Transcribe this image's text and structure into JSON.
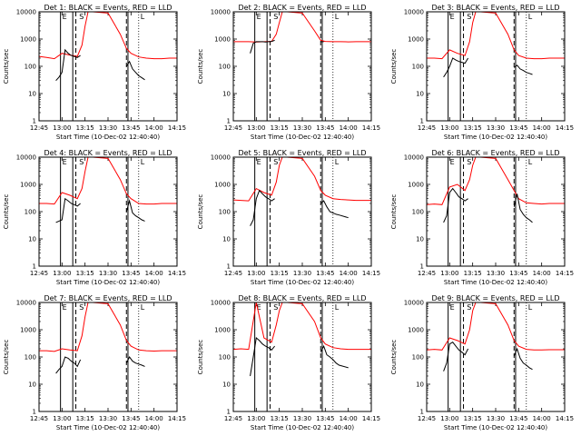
{
  "figure": {
    "x_ticks": [
      "12:45",
      "13:00",
      "13:15",
      "13:30",
      "13:45",
      "14:00",
      "14:15"
    ],
    "y_ticks": [
      "1",
      "10",
      "100",
      "1000",
      "10000"
    ],
    "xlabel": "Start Time (10-Dec-02 12:40:40)",
    "ylabel": "Counts/sec",
    "colors": {
      "events": "#000000",
      "lld": "#ff0000",
      "frame": "#000000"
    }
  },
  "chart_data": [
    {
      "type": "line",
      "title": "Det 1: BLACK = Events, RED = LLD",
      "xlabel": "Start Time (10-Dec-02 12:40:40)",
      "ylabel": "Counts/sec",
      "x_range": [
        "12:45",
        "14:15"
      ],
      "y_scale": "log",
      "ylim": [
        1,
        10000
      ],
      "events_t": [
        "12:56",
        "12:58",
        "13:00",
        "13:02",
        "13:04",
        "13:06",
        "13:08",
        "13:10",
        "13:12",
        "13:42",
        "13:44",
        "13:46",
        "13:48",
        "13:50",
        "13:52",
        "13:54"
      ],
      "events": [
        30,
        40,
        60,
        400,
        300,
        250,
        230,
        210,
        250,
        100,
        150,
        80,
        60,
        45,
        38,
        32
      ],
      "lld_t": [
        "12:45",
        "12:50",
        "12:55",
        "13:00",
        "13:05",
        "13:10",
        "13:13",
        "13:15",
        "13:17",
        "13:20",
        "13:30",
        "13:38",
        "13:42",
        "13:45",
        "13:50",
        "13:55",
        "14:00",
        "14:05",
        "14:10",
        "14:15"
      ],
      "lld": [
        230,
        210,
        190,
        300,
        260,
        230,
        600,
        3000,
        10000,
        10000,
        9000,
        1500,
        450,
        300,
        220,
        200,
        190,
        190,
        200,
        200
      ],
      "vlines_solid": [
        "12:59",
        "13:07",
        "13:43"
      ],
      "vlines_dashed": [
        "13:09",
        "13:42"
      ],
      "vlines_dotted": [
        "13:50"
      ],
      "annotations": [
        {
          "t": "12:59",
          "text": "E"
        },
        {
          "t": "13:10",
          "text": "S"
        },
        {
          "t": "13:50",
          "text": "L"
        }
      ]
    },
    {
      "type": "line",
      "title": "Det 2: BLACK = Events, RED = LLD",
      "xlabel": "Start Time (10-Dec-02 12:40:40)",
      "ylabel": "Counts/sec",
      "x_range": [
        "12:45",
        "14:15"
      ],
      "y_scale": "log",
      "ylim": [
        1,
        10000
      ],
      "events_t": [
        "12:56",
        "12:58",
        "13:00",
        "13:02",
        "13:04",
        "13:06",
        "13:08",
        "13:10",
        "13:12",
        "13:42",
        "13:44"
      ],
      "events": [
        300,
        700,
        800,
        800,
        800,
        780,
        800,
        820,
        900,
        800,
        800
      ],
      "lld_t": [
        "12:45",
        "12:50",
        "12:55",
        "13:00",
        "13:05",
        "13:10",
        "13:13",
        "13:15",
        "13:17",
        "13:20",
        "13:30",
        "13:38",
        "13:42",
        "13:45",
        "13:50",
        "13:55",
        "14:00",
        "14:05",
        "14:10",
        "14:15"
      ],
      "lld": [
        800,
        800,
        800,
        780,
        800,
        820,
        1500,
        4000,
        10000,
        10000,
        9000,
        2000,
        900,
        820,
        800,
        800,
        790,
        800,
        800,
        800
      ],
      "vlines_solid": [
        "12:59",
        "13:07",
        "13:43"
      ],
      "vlines_dashed": [
        "13:09",
        "13:42"
      ],
      "vlines_dotted": [
        "13:50"
      ],
      "annotations": [
        {
          "t": "12:59",
          "text": "E"
        },
        {
          "t": "13:10",
          "text": "S"
        },
        {
          "t": "13:50",
          "text": "L"
        }
      ]
    },
    {
      "type": "line",
      "title": "Det 3: BLACK = Events, RED = LLD",
      "xlabel": "Start Time (10-Dec-02 12:40:40)",
      "ylabel": "Counts/sec",
      "x_range": [
        "12:45",
        "14:15"
      ],
      "y_scale": "log",
      "ylim": [
        1,
        10000
      ],
      "events_t": [
        "12:56",
        "12:58",
        "13:00",
        "13:02",
        "13:04",
        "13:06",
        "13:08",
        "13:10",
        "13:12",
        "13:42",
        "13:44",
        "13:46",
        "13:48",
        "13:50",
        "13:52",
        "13:54"
      ],
      "events": [
        40,
        60,
        100,
        200,
        170,
        150,
        140,
        130,
        200,
        90,
        110,
        80,
        70,
        60,
        55,
        50
      ],
      "lld_t": [
        "12:45",
        "12:50",
        "12:55",
        "13:00",
        "13:05",
        "13:10",
        "13:13",
        "13:15",
        "13:17",
        "13:20",
        "13:30",
        "13:38",
        "13:42",
        "13:45",
        "13:50",
        "13:55",
        "14:00",
        "14:05",
        "14:10",
        "14:15"
      ],
      "lld": [
        200,
        200,
        190,
        400,
        300,
        250,
        800,
        4000,
        10000,
        10000,
        9000,
        1500,
        400,
        250,
        200,
        190,
        190,
        200,
        200,
        200
      ],
      "vlines_solid": [
        "12:59",
        "13:07",
        "13:43"
      ],
      "vlines_dashed": [
        "13:09",
        "13:42"
      ],
      "vlines_dotted": [
        "13:50"
      ],
      "annotations": [
        {
          "t": "12:59",
          "text": "E"
        },
        {
          "t": "13:10",
          "text": "S"
        },
        {
          "t": "13:50",
          "text": "L"
        }
      ]
    },
    {
      "type": "line",
      "title": "Det 4: BLACK = Events, RED = LLD",
      "xlabel": "Start Time (10-Dec-02 12:40:40)",
      "ylabel": "Counts/sec",
      "x_range": [
        "12:45",
        "14:15"
      ],
      "y_scale": "log",
      "ylim": [
        1,
        10000
      ],
      "events_t": [
        "12:56",
        "12:58",
        "13:00",
        "13:02",
        "13:04",
        "13:06",
        "13:08",
        "13:10",
        "13:12",
        "13:42",
        "13:44",
        "13:46",
        "13:48",
        "13:50",
        "13:52",
        "13:54"
      ],
      "events": [
        40,
        45,
        50,
        300,
        250,
        200,
        180,
        160,
        200,
        100,
        250,
        90,
        70,
        60,
        50,
        45
      ],
      "lld_t": [
        "12:45",
        "12:50",
        "12:55",
        "13:00",
        "13:05",
        "13:10",
        "13:13",
        "13:15",
        "13:17",
        "13:20",
        "13:30",
        "13:38",
        "13:42",
        "13:45",
        "13:50",
        "13:55",
        "14:00",
        "14:05",
        "14:10",
        "14:15"
      ],
      "lld": [
        200,
        200,
        190,
        500,
        400,
        300,
        700,
        3000,
        10000,
        10000,
        9000,
        1500,
        450,
        300,
        200,
        190,
        190,
        200,
        200,
        200
      ],
      "vlines_solid": [
        "12:59",
        "13:07",
        "13:43"
      ],
      "vlines_dashed": [
        "13:09",
        "13:42"
      ],
      "vlines_dotted": [
        "13:50"
      ],
      "annotations": [
        {
          "t": "12:59",
          "text": "E"
        },
        {
          "t": "13:10",
          "text": "S"
        },
        {
          "t": "13:50",
          "text": "L"
        }
      ]
    },
    {
      "type": "line",
      "title": "Det 5: BLACK = Events, RED = LLD",
      "xlabel": "Start Time (10-Dec-02 12:40:40)",
      "ylabel": "Counts/sec",
      "x_range": [
        "12:45",
        "14:15"
      ],
      "y_scale": "log",
      "ylim": [
        1,
        10000
      ],
      "events_t": [
        "12:56",
        "12:58",
        "13:00",
        "13:02",
        "13:04",
        "13:06",
        "13:08",
        "13:10",
        "13:12",
        "13:42",
        "13:44",
        "13:46",
        "13:48",
        "13:50",
        "13:52",
        "13:54",
        "14:00"
      ],
      "events": [
        30,
        50,
        300,
        600,
        450,
        350,
        300,
        250,
        300,
        200,
        250,
        150,
        100,
        90,
        80,
        75,
        60
      ],
      "lld_t": [
        "12:45",
        "12:50",
        "12:55",
        "13:00",
        "13:05",
        "13:10",
        "13:13",
        "13:15",
        "13:17",
        "13:20",
        "13:30",
        "13:38",
        "13:42",
        "13:45",
        "13:50",
        "13:55",
        "14:00",
        "14:05",
        "14:10",
        "14:15"
      ],
      "lld": [
        270,
        260,
        250,
        700,
        500,
        400,
        1200,
        5000,
        10000,
        10000,
        9000,
        2000,
        600,
        400,
        300,
        280,
        270,
        260,
        260,
        260
      ],
      "vlines_solid": [
        "12:59",
        "13:07",
        "13:43"
      ],
      "vlines_dashed": [
        "13:09",
        "13:42"
      ],
      "vlines_dotted": [
        "13:50"
      ],
      "annotations": [
        {
          "t": "12:59",
          "text": "E"
        },
        {
          "t": "13:10",
          "text": "S"
        },
        {
          "t": "13:50",
          "text": "L"
        }
      ]
    },
    {
      "type": "line",
      "title": "Det 6: BLACK = Events, RED = LLD",
      "xlabel": "Start Time (10-Dec-02 12:40:40)",
      "ylabel": "Counts/sec",
      "x_range": [
        "12:45",
        "14:15"
      ],
      "y_scale": "log",
      "ylim": [
        1,
        10000
      ],
      "events_t": [
        "12:56",
        "12:58",
        "13:00",
        "13:02",
        "13:04",
        "13:06",
        "13:08",
        "13:10",
        "13:12",
        "13:42",
        "13:44",
        "13:46",
        "13:48",
        "13:50",
        "13:52",
        "13:54"
      ],
      "events": [
        40,
        70,
        500,
        700,
        500,
        350,
        300,
        250,
        300,
        150,
        450,
        120,
        80,
        60,
        50,
        40
      ],
      "lld_t": [
        "12:45",
        "12:50",
        "12:55",
        "13:00",
        "13:05",
        "13:10",
        "13:13",
        "13:15",
        "13:17",
        "13:20",
        "13:30",
        "13:38",
        "13:42",
        "13:45",
        "13:50",
        "13:55",
        "14:00",
        "14:05",
        "14:10",
        "14:15"
      ],
      "lld": [
        180,
        190,
        180,
        800,
        1000,
        600,
        1500,
        5000,
        10000,
        10000,
        9000,
        1500,
        600,
        300,
        210,
        200,
        190,
        200,
        200,
        200
      ],
      "vlines_solid": [
        "12:59",
        "13:07",
        "13:43"
      ],
      "vlines_dashed": [
        "13:09",
        "13:42"
      ],
      "vlines_dotted": [
        "13:50"
      ],
      "annotations": [
        {
          "t": "12:59",
          "text": "E"
        },
        {
          "t": "13:10",
          "text": "S"
        },
        {
          "t": "13:50",
          "text": "L"
        }
      ]
    },
    {
      "type": "line",
      "title": "Det 7: BLACK = Events, RED = LLD",
      "xlabel": "Start Time (10-Dec-02 12:40:40)",
      "ylabel": "Counts/sec",
      "x_range": [
        "12:45",
        "14:15"
      ],
      "y_scale": "log",
      "ylim": [
        1,
        10000
      ],
      "events_t": [
        "12:56",
        "12:58",
        "13:00",
        "13:02",
        "13:04",
        "13:06",
        "13:08",
        "13:10",
        "13:12",
        "13:42",
        "13:44",
        "13:46",
        "13:48",
        "13:50",
        "13:52",
        "13:54"
      ],
      "events": [
        25,
        35,
        45,
        100,
        90,
        70,
        60,
        45,
        80,
        60,
        100,
        70,
        60,
        55,
        50,
        45
      ],
      "lld_t": [
        "12:45",
        "12:50",
        "12:55",
        "13:00",
        "13:05",
        "13:10",
        "13:13",
        "13:15",
        "13:17",
        "13:20",
        "13:30",
        "13:38",
        "13:42",
        "13:45",
        "13:50",
        "13:55",
        "14:00",
        "14:05",
        "14:10",
        "14:15"
      ],
      "lld": [
        170,
        170,
        160,
        200,
        180,
        170,
        600,
        3000,
        10000,
        10000,
        9000,
        1500,
        400,
        250,
        180,
        170,
        165,
        170,
        170,
        170
      ],
      "vlines_solid": [
        "12:59",
        "13:07",
        "13:43"
      ],
      "vlines_dashed": [
        "13:09",
        "13:42"
      ],
      "vlines_dotted": [
        "13:50"
      ],
      "annotations": [
        {
          "t": "12:59",
          "text": "E"
        },
        {
          "t": "13:10",
          "text": "S"
        },
        {
          "t": "13:50",
          "text": "L"
        }
      ]
    },
    {
      "type": "line",
      "title": "Det 8: BLACK = Events, RED = LLD",
      "xlabel": "Start Time (10-Dec-02 12:40:40)",
      "ylabel": "Counts/sec",
      "x_range": [
        "12:45",
        "14:15"
      ],
      "y_scale": "log",
      "ylim": [
        1,
        10000
      ],
      "events_t": [
        "12:56",
        "12:58",
        "13:00",
        "13:02",
        "13:04",
        "13:06",
        "13:08",
        "13:10",
        "13:12",
        "13:42",
        "13:44",
        "13:46",
        "13:48",
        "13:50",
        "13:52",
        "13:54",
        "14:00"
      ],
      "events": [
        20,
        100,
        500,
        400,
        300,
        250,
        220,
        180,
        250,
        150,
        250,
        120,
        100,
        80,
        60,
        50,
        40
      ],
      "lld_t": [
        "12:45",
        "12:50",
        "12:55",
        "13:00",
        "13:05",
        "13:10",
        "13:13",
        "13:15",
        "13:17",
        "13:20",
        "13:30",
        "13:38",
        "13:42",
        "13:45",
        "13:50",
        "13:55",
        "14:00",
        "14:05",
        "14:10",
        "14:15"
      ],
      "lld": [
        190,
        200,
        190,
        10000,
        500,
        350,
        1500,
        5000,
        10000,
        10000,
        9000,
        2000,
        500,
        300,
        220,
        200,
        190,
        190,
        190,
        190
      ],
      "vlines_solid": [
        "12:59",
        "13:07",
        "13:43"
      ],
      "vlines_dashed": [
        "13:09",
        "13:42"
      ],
      "vlines_dotted": [
        "13:50"
      ],
      "annotations": [
        {
          "t": "12:59",
          "text": "E"
        },
        {
          "t": "13:10",
          "text": "S"
        },
        {
          "t": "13:50",
          "text": "L"
        }
      ]
    },
    {
      "type": "line",
      "title": "Det 9: BLACK = Events, RED = LLD",
      "xlabel": "Start Time (10-Dec-02 12:40:40)",
      "ylabel": "Counts/sec",
      "x_range": [
        "12:45",
        "14:15"
      ],
      "y_scale": "log",
      "ylim": [
        1,
        10000
      ],
      "events_t": [
        "12:56",
        "12:58",
        "13:00",
        "13:02",
        "13:04",
        "13:06",
        "13:08",
        "13:10",
        "13:12",
        "13:42",
        "13:44",
        "13:46",
        "13:48",
        "13:50",
        "13:52",
        "13:54"
      ],
      "events": [
        30,
        60,
        300,
        350,
        250,
        180,
        150,
        120,
        200,
        110,
        200,
        90,
        60,
        50,
        40,
        35
      ],
      "lld_t": [
        "12:45",
        "12:50",
        "12:55",
        "13:00",
        "13:05",
        "13:10",
        "13:13",
        "13:15",
        "13:17",
        "13:20",
        "13:30",
        "13:38",
        "13:42",
        "13:45",
        "13:50",
        "13:55",
        "14:00",
        "14:05",
        "14:10",
        "14:15"
      ],
      "lld": [
        180,
        190,
        180,
        500,
        400,
        300,
        1000,
        5000,
        10000,
        10000,
        9000,
        1500,
        400,
        250,
        190,
        180,
        180,
        185,
        185,
        185
      ],
      "vlines_solid": [
        "12:59",
        "13:07",
        "13:43"
      ],
      "vlines_dashed": [
        "13:09",
        "13:42"
      ],
      "vlines_dotted": [
        "13:50"
      ],
      "annotations": [
        {
          "t": "12:59",
          "text": "E"
        },
        {
          "t": "13:10",
          "text": "S"
        },
        {
          "t": "13:50",
          "text": "L"
        }
      ]
    }
  ]
}
